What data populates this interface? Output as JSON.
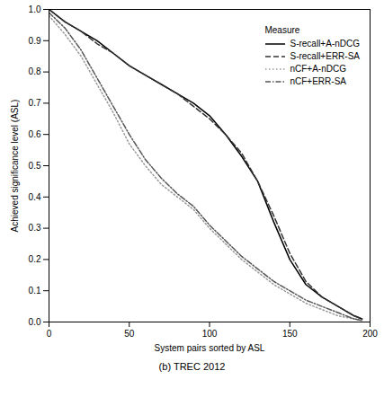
{
  "chart_data": {
    "type": "line",
    "caption": "(b) TREC 2012",
    "x_label": "System pairs sorted by ASL",
    "y_label": "Achieved significance level (ASL)",
    "legend_title": "Measure",
    "legend": "top-right",
    "grid": false,
    "x": [
      0,
      10,
      20,
      30,
      40,
      50,
      60,
      70,
      80,
      90,
      100,
      110,
      120,
      130,
      140,
      150,
      160,
      170,
      180,
      190,
      195
    ],
    "series": [
      {
        "name": "S-recall+A-nDCG",
        "color": "#000000",
        "line_style": "solid",
        "values": [
          1.0,
          0.96,
          0.93,
          0.9,
          0.86,
          0.82,
          0.79,
          0.76,
          0.73,
          0.7,
          0.66,
          0.6,
          0.53,
          0.45,
          0.32,
          0.2,
          0.12,
          0.08,
          0.05,
          0.02,
          0.01
        ]
      },
      {
        "name": "S-recall+ERR-SA",
        "color": "#333333",
        "line_style": "dashed",
        "values": [
          1.0,
          0.96,
          0.93,
          0.89,
          0.86,
          0.82,
          0.79,
          0.76,
          0.73,
          0.69,
          0.65,
          0.6,
          0.54,
          0.45,
          0.34,
          0.22,
          0.13,
          0.08,
          0.05,
          0.02,
          0.01
        ]
      },
      {
        "name": "nCF+A-nDCG",
        "color": "#999999",
        "line_style": "dotted",
        "values": [
          0.98,
          0.92,
          0.85,
          0.76,
          0.67,
          0.57,
          0.5,
          0.44,
          0.4,
          0.36,
          0.3,
          0.25,
          0.2,
          0.16,
          0.12,
          0.09,
          0.06,
          0.04,
          0.02,
          0.01,
          0.005
        ]
      },
      {
        "name": "nCF+ERR-SA",
        "color": "#555555",
        "line_style": "dashdot",
        "values": [
          0.99,
          0.94,
          0.87,
          0.78,
          0.69,
          0.6,
          0.52,
          0.46,
          0.41,
          0.37,
          0.31,
          0.26,
          0.21,
          0.17,
          0.13,
          0.1,
          0.07,
          0.05,
          0.03,
          0.01,
          0.005
        ]
      }
    ],
    "xlim": [
      0,
      200
    ],
    "xticks": [
      0,
      50,
      100,
      150,
      200
    ],
    "ylim": [
      0,
      1
    ],
    "yticks": [
      {
        "value": 0,
        "label": "0.0"
      },
      0.1,
      0.2,
      0.3,
      0.4,
      0.5,
      0.6,
      0.7,
      0.8,
      0.9,
      {
        "value": 1,
        "label": "1.0"
      }
    ]
  }
}
